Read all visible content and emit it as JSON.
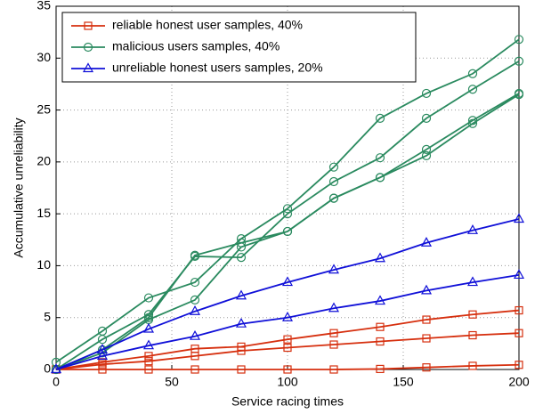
{
  "chart_data": {
    "type": "line",
    "xlabel": "Service racing times",
    "ylabel": "Accumulative unreliability",
    "x": [
      0,
      20,
      40,
      60,
      80,
      100,
      120,
      140,
      160,
      180,
      200
    ],
    "xlim": [
      0,
      200
    ],
    "xticks": [
      0,
      50,
      100,
      150,
      200
    ],
    "ylim": [
      0,
      35
    ],
    "yticks": [
      0,
      5,
      10,
      15,
      20,
      25,
      30,
      35
    ],
    "grid": true,
    "legend": "upper left",
    "series": [
      {
        "name": "reliable honest user samples, 40%",
        "color": "#d62f0e",
        "marker": "square",
        "lines": [
          [
            0,
            0.7,
            1.3,
            2.0,
            2.2,
            2.9,
            3.5,
            4.1,
            4.8,
            5.3,
            5.7
          ],
          [
            0,
            0.5,
            0.8,
            1.3,
            1.8,
            2.1,
            2.4,
            2.7,
            3.0,
            3.3,
            3.5
          ],
          [
            0,
            0,
            0,
            0,
            0,
            0,
            0,
            0.05,
            0.2,
            0.35,
            0.45
          ]
        ]
      },
      {
        "name": "malicious users samples, 40%",
        "color": "#2a8a5f",
        "marker": "circle",
        "lines": [
          [
            0.7,
            3.7,
            6.9,
            8.4,
            12.6,
            15.5,
            19.5,
            24.2,
            26.6,
            28.5,
            31.8
          ],
          [
            0,
            2.9,
            5.3,
            10.9,
            10.8,
            15.0,
            18.1,
            20.4,
            24.2,
            27.0,
            29.7
          ],
          [
            0,
            1.9,
            5.0,
            11.0,
            12.2,
            13.3,
            16.5,
            18.5,
            21.2,
            24.0,
            26.6
          ],
          [
            0,
            1.6,
            4.8,
            6.7,
            11.8,
            13.3,
            16.5,
            18.5,
            20.6,
            23.7,
            26.5
          ]
        ]
      },
      {
        "name": "unreliable honest users samples, 20%",
        "color": "#1010d8",
        "marker": "triangle",
        "lines": [
          [
            0,
            1.9,
            3.9,
            5.6,
            7.1,
            8.4,
            9.6,
            10.7,
            12.2,
            13.4,
            14.5
          ],
          [
            0,
            1.3,
            2.3,
            3.2,
            4.4,
            5.0,
            5.9,
            6.6,
            7.6,
            8.4,
            9.1
          ]
        ]
      }
    ]
  }
}
